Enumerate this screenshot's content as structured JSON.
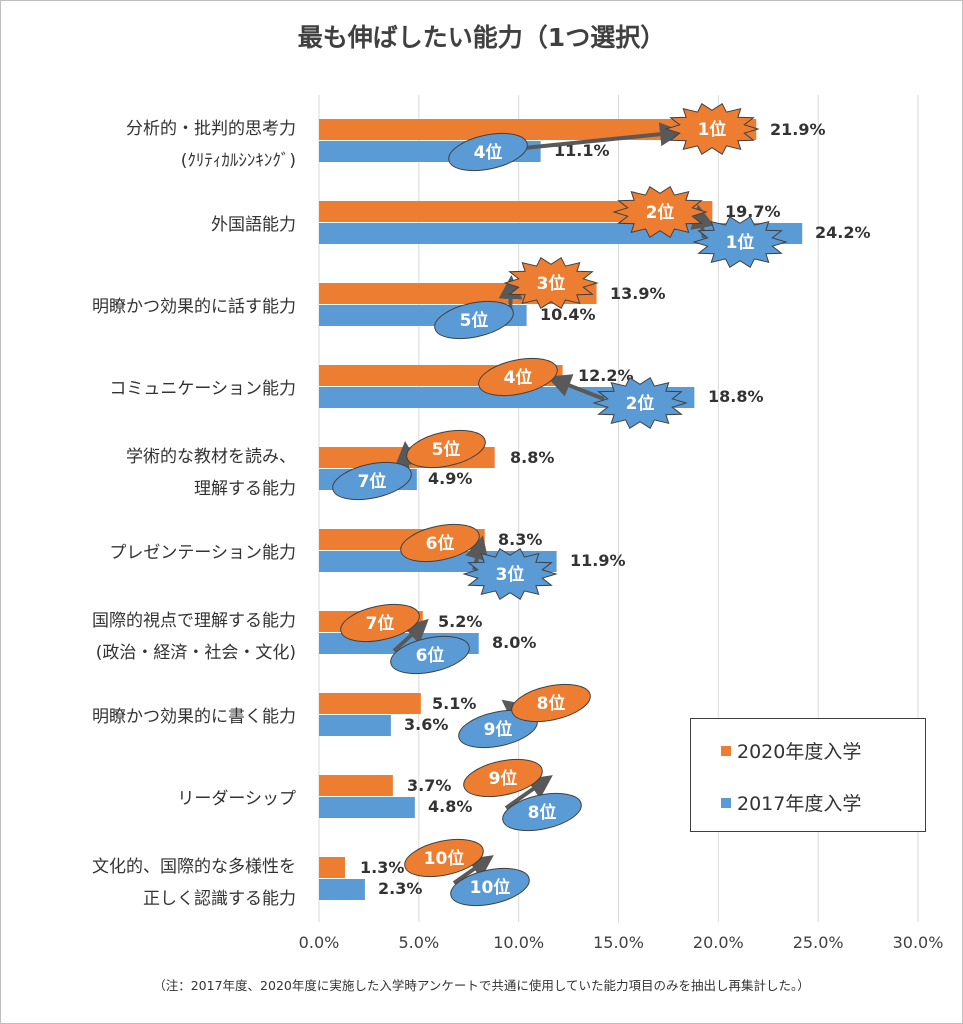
{
  "title": "最も伸ばしたい能力（1つ選択）",
  "note": "（注：2017年度、2020年度に実施した入学時アンケートで共通に使用していた能力項目のみを抽出し再集計した。）",
  "colors": {
    "s2020": "#ed7d31",
    "s2017": "#5b9bd5",
    "grid": "#d9d9d9",
    "arrow": "#595959"
  },
  "chart_data": {
    "type": "bar",
    "orientation": "horizontal",
    "title": "最も伸ばしたい能力（1つ選択）",
    "categories": [
      [
        "分析的・批判的思考力",
        "(ｸﾘﾃｨｶﾙｼﾝｷﾝｸﾞ)"
      ],
      [
        "外国語能力"
      ],
      [
        "明瞭かつ効果的に話す能力"
      ],
      [
        "コミュニケーション能力"
      ],
      [
        "学術的な教材を読み、",
        "理解する能力"
      ],
      [
        "プレゼンテーション能力"
      ],
      [
        "国際的視点で理解する能力",
        "(政治・経済・社会・文化)"
      ],
      [
        "明瞭かつ効果的に書く能力"
      ],
      [
        "リーダーシップ"
      ],
      [
        "文化的、国際的な多様性を",
        "正しく認識する能力"
      ]
    ],
    "series": [
      {
        "name": "2020年度入学",
        "values": [
          21.9,
          19.7,
          13.9,
          12.2,
          8.8,
          8.3,
          5.2,
          5.1,
          3.7,
          1.3
        ],
        "labels": [
          "21.9%",
          "19.7%",
          "13.9%",
          "12.2%",
          "8.8%",
          "8.3%",
          "5.2%",
          "5.1%",
          "3.7%",
          "1.3%"
        ],
        "ranks": [
          "1位",
          "2位",
          "3位",
          "4位",
          "5位",
          "6位",
          "7位",
          "8位",
          "9位",
          "10位"
        ]
      },
      {
        "name": "2017年度入学",
        "values": [
          11.1,
          24.2,
          10.4,
          18.8,
          4.9,
          11.9,
          8.0,
          3.6,
          4.8,
          2.3
        ],
        "labels": [
          "11.1%",
          "24.2%",
          "10.4%",
          "18.8%",
          "4.9%",
          "11.9%",
          "8.0%",
          "3.6%",
          "4.8%",
          "2.3%"
        ],
        "ranks": [
          "4位",
          "1位",
          "5位",
          "2位",
          "7位",
          "3位",
          "6位",
          "9位",
          "8位",
          "10位"
        ]
      }
    ],
    "xlim": [
      0,
      30
    ],
    "xticks": [
      "0.0%",
      "5.0%",
      "10.0%",
      "15.0%",
      "20.0%",
      "25.0%",
      "30.0%"
    ],
    "grid": true,
    "legend": "bottom-right"
  },
  "legend": {
    "items": [
      "2020年度入学",
      "2017年度入学"
    ]
  }
}
